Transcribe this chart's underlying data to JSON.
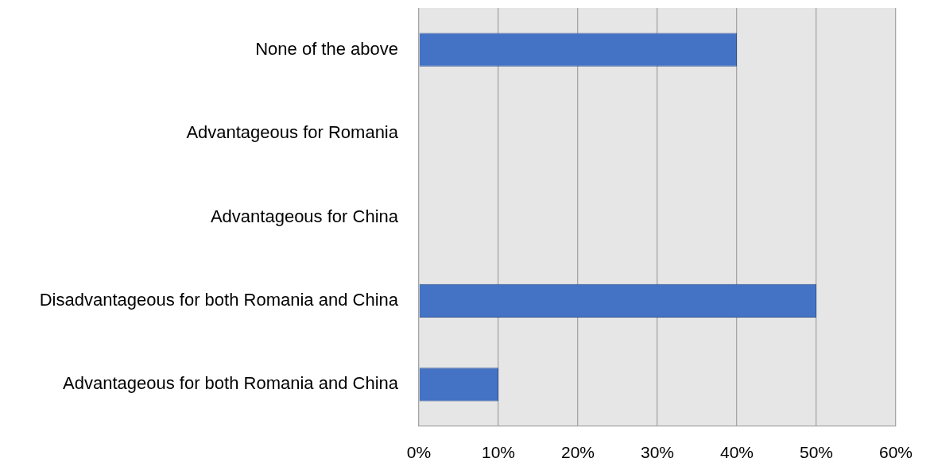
{
  "chart_data": {
    "type": "bar",
    "orientation": "horizontal",
    "categories": [
      "None of the above",
      "Advantageous for Romania",
      "Advantageous for China",
      "Disadvantageous for both Romania and China",
      "Advantageous for both Romania and China"
    ],
    "values": [
      40,
      0,
      0,
      50,
      10
    ],
    "color": "#4472c4",
    "xlim": [
      0,
      60
    ],
    "xticks": [
      {
        "value": 0,
        "label": "0%"
      },
      {
        "value": 10,
        "label": "10%"
      },
      {
        "value": 20,
        "label": "20%"
      },
      {
        "value": 30,
        "label": "30%"
      },
      {
        "value": 40,
        "label": "40%"
      },
      {
        "value": 50,
        "label": "50%"
      },
      {
        "value": 60,
        "label": "60%"
      }
    ],
    "grid": "x"
  }
}
